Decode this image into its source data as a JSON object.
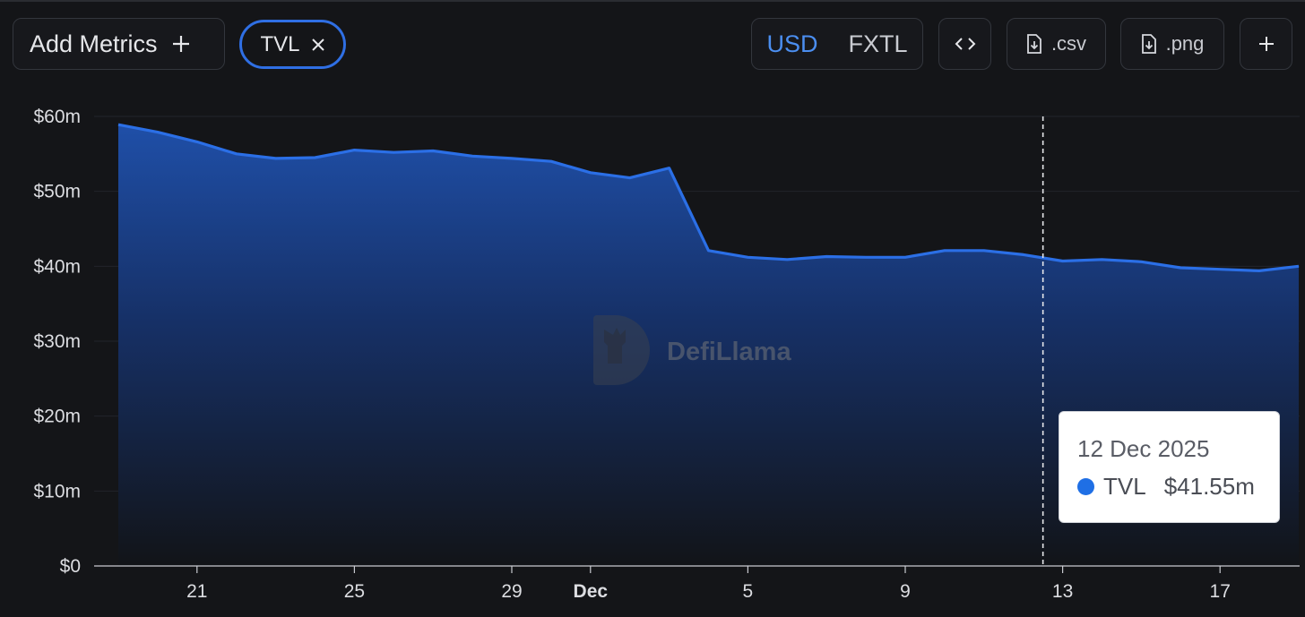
{
  "toolbar": {
    "add_metrics_label": "Add Metrics",
    "metric_chip_label": "TVL",
    "units": [
      "USD",
      "FXTL"
    ],
    "selected_unit": "USD",
    "csv_label": ".csv",
    "png_label": ".png"
  },
  "watermark": {
    "text": "DefiLlama"
  },
  "tooltip": {
    "date": "12 Dec 2025",
    "series_name": "TVL",
    "value": "$41.55m",
    "color": "#1f6fe5"
  },
  "colors": {
    "accent": "#2f6fe4",
    "line": "#2b6fe6",
    "background": "#141518"
  },
  "chart_data": {
    "type": "area",
    "title": "",
    "xlabel": "",
    "ylabel": "",
    "x_ticks": [
      "21",
      "25",
      "29",
      "Dec",
      "5",
      "9",
      "13",
      "17"
    ],
    "y_ticks": [
      "$0",
      "$10m",
      "$20m",
      "$30m",
      "$40m",
      "$50m",
      "$60m"
    ],
    "ylim": [
      0,
      60
    ],
    "y_unit": "million USD",
    "grid": true,
    "highlight_x": "2025-12-12",
    "series": [
      {
        "name": "TVL",
        "x": [
          "2025-11-19",
          "2025-11-20",
          "2025-11-21",
          "2025-11-22",
          "2025-11-23",
          "2025-11-24",
          "2025-11-25",
          "2025-11-26",
          "2025-11-27",
          "2025-11-28",
          "2025-11-29",
          "2025-11-30",
          "2025-12-01",
          "2025-12-02",
          "2025-12-03",
          "2025-12-04",
          "2025-12-05",
          "2025-12-06",
          "2025-12-07",
          "2025-12-08",
          "2025-12-09",
          "2025-12-10",
          "2025-12-11",
          "2025-12-12",
          "2025-12-13",
          "2025-12-14",
          "2025-12-15",
          "2025-12-16",
          "2025-12-17",
          "2025-12-18",
          "2025-12-19"
        ],
        "values": [
          58.9,
          57.9,
          56.6,
          55.0,
          54.4,
          54.5,
          55.5,
          55.2,
          55.4,
          54.7,
          54.4,
          54.0,
          52.5,
          51.8,
          53.1,
          42.1,
          41.2,
          40.9,
          41.3,
          41.2,
          41.2,
          42.1,
          42.1,
          41.55,
          40.7,
          40.9,
          40.6,
          39.8,
          39.6,
          39.4,
          40.0
        ]
      }
    ]
  }
}
